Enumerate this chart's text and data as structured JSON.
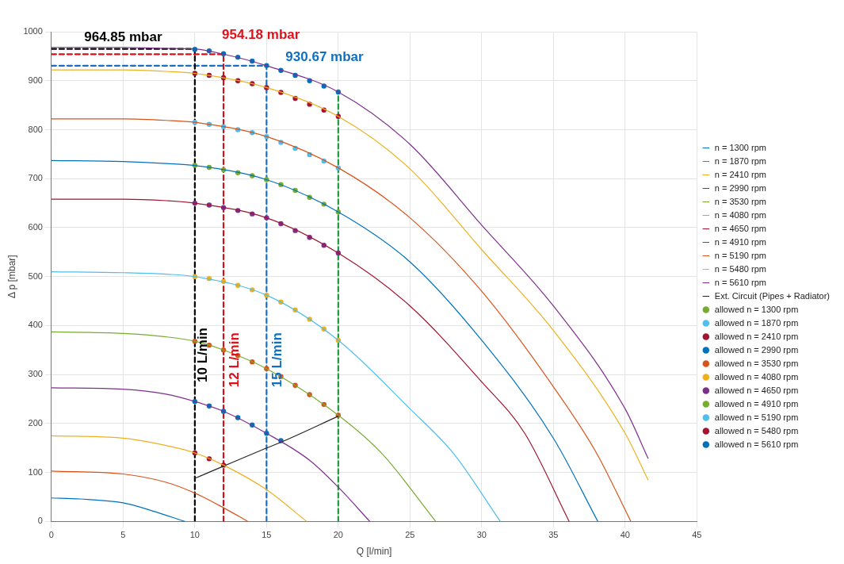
{
  "chart_data": {
    "type": "line",
    "xlabel": "Q [l/min]",
    "ylabel": "Δ p [mbar]",
    "xlim": [
      0,
      45
    ],
    "xticks": [
      0,
      5,
      10,
      15,
      20,
      25,
      30,
      35,
      40,
      45
    ],
    "ylim": [
      0,
      1000
    ],
    "yticks": [
      0,
      100,
      200,
      300,
      400,
      500,
      600,
      700,
      800,
      900,
      1000
    ],
    "grid": true,
    "legend": "right",
    "series": [
      {
        "type": "line",
        "name": "n = 1300 rpm",
        "color": "#0072bd",
        "x": [
          0,
          2,
          5,
          7,
          9.3
        ],
        "values": [
          48,
          46,
          38,
          22,
          0
        ]
      },
      {
        "type": "line",
        "name": "n = 1870 rpm",
        "color": "#d95319",
        "x": [
          0,
          5,
          8,
          10,
          12,
          13.7
        ],
        "values": [
          103,
          97,
          80,
          58,
          28,
          0
        ]
      },
      {
        "type": "line",
        "name": "n = 2410 rpm",
        "color": "#edb120",
        "x": [
          0,
          5,
          8,
          10,
          12,
          15,
          17.8
        ],
        "values": [
          175,
          170,
          155,
          140,
          115,
          65,
          0
        ]
      },
      {
        "type": "line",
        "name": "n = 2990 rpm",
        "color": "#7e2f8e",
        "x": [
          0,
          5,
          8,
          10,
          12,
          15,
          18,
          20,
          22.2
        ],
        "values": [
          273,
          270,
          260,
          245,
          225,
          180,
          125,
          70,
          0
        ]
      },
      {
        "type": "line",
        "name": "n = 3530 rpm",
        "color": "#77ac30",
        "x": [
          0,
          5,
          8,
          10,
          12,
          15,
          20,
          23,
          26.8
        ],
        "values": [
          387,
          384,
          377,
          368,
          350,
          312,
          217,
          140,
          0
        ]
      },
      {
        "type": "line",
        "name": "n = 4080 rpm",
        "color": "#4dbeee",
        "x": [
          0,
          5,
          8,
          10,
          15,
          20,
          25,
          28,
          31.3
        ],
        "values": [
          510,
          508,
          505,
          500,
          462,
          370,
          230,
          140,
          0
        ]
      },
      {
        "type": "line",
        "name": "n = 4650 rpm",
        "color": "#a2142f",
        "x": [
          0,
          5,
          8,
          10,
          15,
          20,
          25,
          30,
          33,
          36.1
        ],
        "values": [
          658,
          658,
          655,
          650,
          620,
          548,
          440,
          285,
          180,
          0
        ]
      },
      {
        "type": "line",
        "name": "n = 4910 rpm",
        "color": "#0072bd",
        "x": [
          0,
          5,
          8,
          10,
          15,
          20,
          25,
          30,
          35,
          38.1
        ],
        "values": [
          737,
          735,
          731,
          727,
          698,
          632,
          530,
          370,
          170,
          0
        ]
      },
      {
        "type": "line",
        "name": "n = 5190 rpm",
        "color": "#d95319",
        "x": [
          0,
          5,
          8,
          10,
          15,
          20,
          25,
          30,
          35,
          38,
          40.4
        ],
        "values": [
          822,
          822,
          819,
          815,
          786,
          722,
          620,
          470,
          275,
          140,
          0
        ]
      },
      {
        "type": "line",
        "name": "n = 5480 rpm",
        "color": "#edb120",
        "x": [
          0,
          5,
          8,
          10,
          15,
          20,
          25,
          30,
          35,
          40,
          41.6
        ],
        "values": [
          922,
          922,
          919,
          915,
          886,
          827,
          720,
          555,
          390,
          180,
          85
        ]
      },
      {
        "type": "line",
        "name": "n = 5610 rpm",
        "color": "#7e2f8e",
        "x": [
          0,
          5,
          8,
          10,
          12,
          15,
          20,
          25,
          30,
          35,
          40,
          41.6
        ],
        "values": [
          968,
          968,
          966,
          964.85,
          954.18,
          930.67,
          877,
          770,
          605,
          440,
          230,
          129
        ]
      },
      {
        "type": "line",
        "name": "Ext. Circuit (Pipes + Radiator)",
        "color": "#262626",
        "x": [
          10,
          12,
          15,
          16.1,
          20
        ],
        "values": [
          88,
          113,
          150,
          163,
          215
        ]
      },
      {
        "type": "scatter",
        "marker": "circle",
        "name": "allowed n = 1300 rpm",
        "color": "#77ac30"
      },
      {
        "type": "scatter",
        "marker": "circle",
        "name": "allowed n = 1870 rpm",
        "color": "#4dbeee"
      },
      {
        "type": "scatter",
        "marker": "circle",
        "name": "allowed n = 2410 rpm",
        "color": "#a2142f",
        "x": [
          10,
          11,
          12
        ],
        "values": [
          140,
          128,
          115
        ]
      },
      {
        "type": "scatter",
        "marker": "circle",
        "name": "allowed n = 2990 rpm",
        "color": "#0072bd",
        "x": [
          10,
          11,
          12,
          13,
          14,
          15,
          16
        ],
        "values": [
          245,
          236,
          225,
          212,
          197,
          180,
          165
        ]
      },
      {
        "type": "scatter",
        "marker": "circle",
        "name": "allowed n = 3530 rpm",
        "color": "#d95319",
        "x": [
          10,
          11,
          12,
          13,
          14,
          15,
          16,
          17,
          18,
          19,
          20
        ],
        "values": [
          368,
          360,
          350,
          339,
          326,
          312,
          296,
          278,
          259,
          239,
          217
        ]
      },
      {
        "type": "scatter",
        "marker": "circle",
        "name": "allowed n = 4080 rpm",
        "color": "#edb120",
        "x": [
          10,
          11,
          12,
          13,
          14,
          15,
          16,
          17,
          18,
          19,
          20
        ],
        "values": [
          500,
          496,
          490,
          482,
          473,
          462,
          448,
          432,
          413,
          393,
          370
        ]
      },
      {
        "type": "scatter",
        "marker": "circle",
        "name": "allowed n = 4650 rpm",
        "color": "#7e2f8e",
        "x": [
          10,
          11,
          12,
          13,
          14,
          15,
          16,
          17,
          18,
          19,
          20
        ],
        "values": [
          650,
          646,
          641,
          635,
          628,
          620,
          608,
          594,
          580,
          564,
          548
        ]
      },
      {
        "type": "scatter",
        "marker": "circle",
        "name": "allowed n = 4910 rpm",
        "color": "#77ac30",
        "x": [
          10,
          11,
          12,
          13,
          14,
          15,
          16,
          17,
          18,
          19,
          20
        ],
        "values": [
          727,
          723,
          718,
          712,
          706,
          698,
          688,
          676,
          662,
          648,
          632
        ]
      },
      {
        "type": "scatter",
        "marker": "circle",
        "name": "allowed n = 5190 rpm",
        "color": "#4dbeee",
        "x": [
          10,
          11,
          12,
          13,
          14,
          15,
          16,
          17,
          18,
          19,
          20
        ],
        "values": [
          815,
          811,
          806,
          800,
          794,
          786,
          774,
          762,
          749,
          736,
          722
        ]
      },
      {
        "type": "scatter",
        "marker": "circle",
        "name": "allowed n = 5480 rpm",
        "color": "#a2142f",
        "x": [
          10,
          11,
          12,
          13,
          14,
          15,
          16,
          17,
          18,
          19,
          20
        ],
        "values": [
          915,
          911,
          906,
          900,
          894,
          886,
          876,
          864,
          852,
          840,
          827
        ]
      },
      {
        "type": "scatter",
        "marker": "circle",
        "name": "allowed n = 5610 rpm",
        "color": "#0072bd",
        "x": [
          10,
          11,
          12,
          13,
          14,
          15,
          16,
          17,
          18,
          19,
          20
        ],
        "values": [
          964,
          961,
          955,
          948,
          940,
          931,
          921,
          911,
          900,
          889,
          877
        ]
      },
      {
        "type": "line",
        "line_style": "dashed",
        "color": "#000000",
        "x": [
          0,
          10,
          10
        ],
        "values": [
          964.85,
          964.85,
          0
        ]
      },
      {
        "type": "line",
        "line_style": "dashed",
        "color": "#d0101a",
        "x": [
          0,
          12,
          12
        ],
        "values": [
          954.18,
          954.18,
          0
        ]
      },
      {
        "type": "line",
        "line_style": "dashed",
        "color": "#1a70c0",
        "x": [
          0,
          15,
          15
        ],
        "values": [
          930.67,
          930.67,
          0
        ]
      },
      {
        "type": "line",
        "line_style": "dashed",
        "color": "#1a9a40",
        "x": [
          20,
          20
        ],
        "values": [
          0,
          877
        ]
      }
    ],
    "annotations": [
      {
        "text": "964.85 mbar",
        "x": 5,
        "y": 964.85
      },
      {
        "text": "954.18 mbar",
        "x": 12,
        "y": 954.18
      },
      {
        "text": "930.67 mbar",
        "x": 15,
        "y": 930.67
      },
      {
        "text": "10 L/min",
        "x": 10,
        "y": 340
      },
      {
        "text": "12 L/min",
        "x": 12,
        "y": 330
      },
      {
        "text": "15 L/min",
        "x": 15,
        "y": 330
      }
    ]
  }
}
